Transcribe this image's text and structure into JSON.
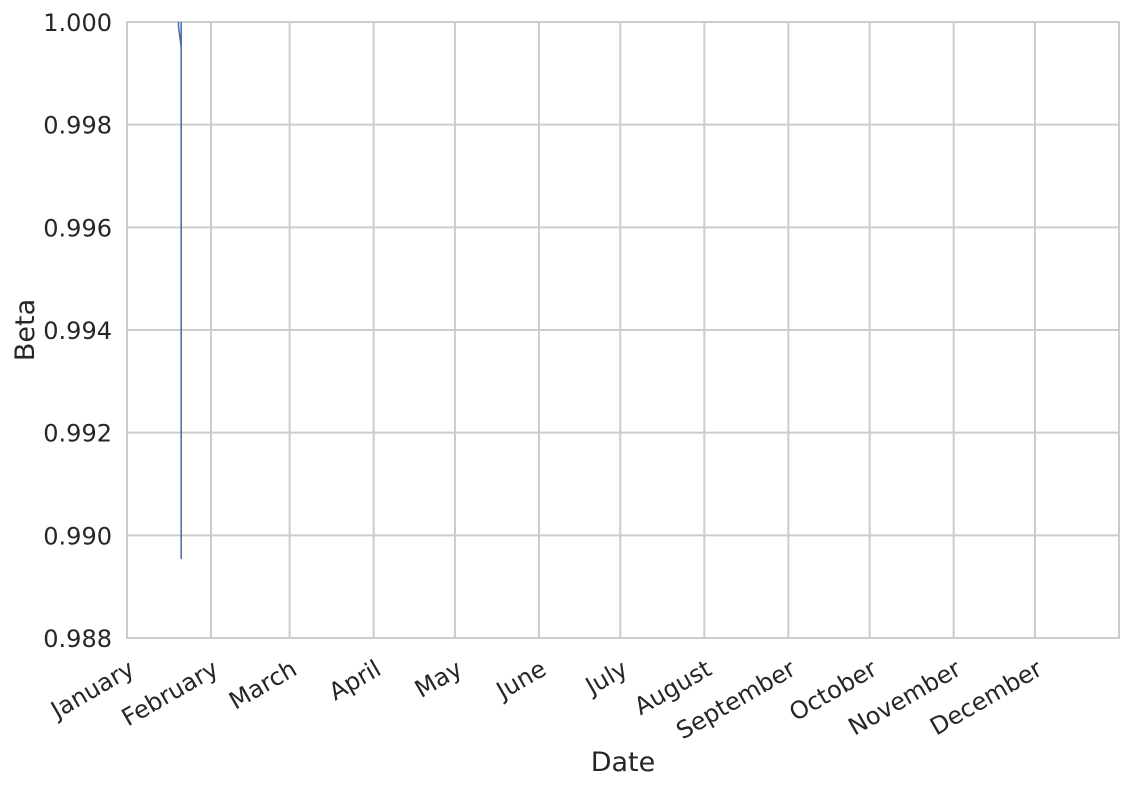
{
  "chart_data": {
    "type": "line",
    "title": "",
    "xlabel": "Date",
    "ylabel": "Beta",
    "x_tick_labels": [
      "January",
      "February",
      "March",
      "April",
      "May",
      "June",
      "July",
      "August",
      "September",
      "October",
      "November",
      "December"
    ],
    "x_tick_dates": [
      "2000-01-01",
      "2000-02-01",
      "2000-03-01",
      "2000-04-01",
      "2000-05-01",
      "2000-06-01",
      "2000-07-01",
      "2000-08-01",
      "2000-09-01",
      "2000-10-01",
      "2000-11-01",
      "2000-12-01"
    ],
    "xlim": [
      "2000-01-01",
      "2001-01-01"
    ],
    "y_ticks": [
      "0.988",
      "0.990",
      "0.992",
      "0.994",
      "0.996",
      "0.998",
      "1.000"
    ],
    "ylim": [
      0.988,
      1.0
    ],
    "grid": true,
    "series": [
      {
        "color": "#4c72b0",
        "x": [
          "2000-01-20",
          "2000-01-20",
          "2000-01-21",
          "2000-01-21",
          "2000-01-21"
        ],
        "y": [
          1.0,
          0.99992,
          0.9995,
          0.98955,
          1.0
        ]
      }
    ]
  }
}
